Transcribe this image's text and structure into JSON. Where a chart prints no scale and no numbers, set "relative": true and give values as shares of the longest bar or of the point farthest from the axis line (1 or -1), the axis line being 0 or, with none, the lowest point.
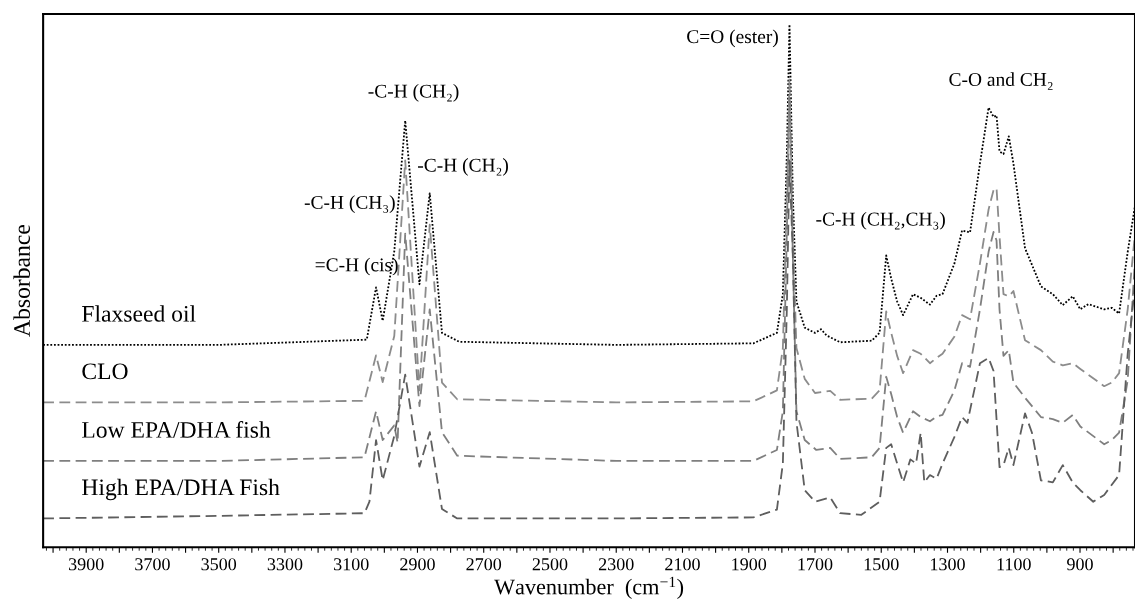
{
  "chart_data": {
    "type": "line",
    "relative": true,
    "xlabel": "Wavenumber  (cm$^{−1}$)",
    "ylabel": "Absorbance",
    "legend": false,
    "grid": false,
    "tick_labels": "x",
    "xlim": [
      4030,
      734
    ],
    "xticks": [
      {
        "value": 4000,
        "label": null
      },
      3900,
      {
        "value": 3800,
        "label": null
      },
      3700,
      {
        "value": 3600,
        "label": null
      },
      3500,
      {
        "value": 3400,
        "label": null
      },
      3300,
      {
        "value": 3200,
        "label": null
      },
      3100,
      {
        "value": 3000,
        "label": null
      },
      2900,
      {
        "value": 2800,
        "label": null
      },
      2700,
      {
        "value": 2600,
        "label": null
      },
      2500,
      {
        "value": 2400,
        "label": null
      },
      2300,
      {
        "value": 2200,
        "label": null
      },
      2100,
      {
        "value": 2000,
        "label": null
      },
      1900,
      {
        "value": 1800,
        "label": null
      },
      1700,
      {
        "value": 1600,
        "label": null
      },
      1500,
      {
        "value": 1400,
        "label": null
      },
      1300,
      {
        "value": 1200,
        "label": null
      },
      1100,
      {
        "value": 1000,
        "label": null
      },
      900,
      {
        "value": 800,
        "label": null
      }
    ],
    "annotations": [
      {
        "text": "-C-H (CH₂)",
        "x": 2937,
        "y": 0.816
      },
      {
        "text": "-C-H (CH₂)",
        "x": 2863,
        "y": 0.677
      },
      {
        "text": "-C-H (CH₃)",
        "x": 2970,
        "y": 0.566
      },
      {
        "text": "=C-H (cis)",
        "x": 3025,
        "y": 0.497
      },
      {
        "text": "C=O (ester)",
        "x": 1777,
        "y": 1.0
      },
      {
        "text": "-C-H (CH₂,CH₃)",
        "x": 1485,
        "y": 0.558
      },
      {
        "text": "C-O and CH₂",
        "x": 1176,
        "y": 0.841
      }
    ],
    "series": [
      {
        "name": "Flaxseed oil",
        "color": "#000000",
        "line_style": "dotted",
        "x": [
          4030,
          3500,
          3053,
          3025,
          3005,
          2970,
          2937,
          2894,
          2863,
          2826,
          2774,
          2300,
          1886,
          1815,
          1797,
          1785,
          1777,
          1767,
          1756,
          1731,
          1700,
          1682,
          1665,
          1624,
          1529,
          1505,
          1485,
          1470,
          1452,
          1434,
          1404,
          1381,
          1353,
          1333,
          1315,
          1279,
          1256,
          1232,
          1202,
          1176,
          1161,
          1152,
          1143,
          1131,
          1115,
          1101,
          1066,
          1018,
          982,
          952,
          922,
          899,
          875,
          827,
          804,
          782,
          756,
          734
        ],
        "values": [
          0.387,
          0.387,
          0.397,
          0.497,
          0.433,
          0.566,
          0.816,
          0.503,
          0.677,
          0.41,
          0.393,
          0.387,
          0.39,
          0.41,
          0.484,
          0.75,
          1.0,
          0.676,
          0.47,
          0.42,
          0.41,
          0.417,
          0.405,
          0.392,
          0.395,
          0.41,
          0.558,
          0.514,
          0.47,
          0.444,
          0.484,
          0.477,
          0.464,
          0.481,
          0.484,
          0.543,
          0.606,
          0.602,
          0.734,
          0.841,
          0.823,
          0.826,
          0.757,
          0.752,
          0.786,
          0.734,
          0.572,
          0.499,
          0.484,
          0.463,
          0.48,
          0.455,
          0.465,
          0.455,
          0.458,
          0.447,
          0.565,
          0.653
        ]
      },
      {
        "name": "CLO",
        "color": "#8c8c8c",
        "line_style": "dashed",
        "x": [
          4030,
          3500,
          3060,
          3025,
          3005,
          2970,
          2937,
          2894,
          2863,
          2826,
          2780,
          2300,
          1886,
          1815,
          1797,
          1785,
          1777,
          1767,
          1756,
          1731,
          1700,
          1654,
          1624,
          1529,
          1505,
          1485,
          1470,
          1452,
          1434,
          1404,
          1381,
          1353,
          1333,
          1315,
          1279,
          1256,
          1232,
          1202,
          1176,
          1161,
          1152,
          1143,
          1131,
          1115,
          1101,
          1066,
          1018,
          982,
          952,
          922,
          899,
          827,
          804,
          782,
          756,
          734
        ],
        "values": [
          0.277,
          0.277,
          0.28,
          0.367,
          0.316,
          0.404,
          0.74,
          0.3,
          0.617,
          0.315,
          0.283,
          0.277,
          0.279,
          0.3,
          0.381,
          0.676,
          0.896,
          0.602,
          0.381,
          0.322,
          0.295,
          0.299,
          0.282,
          0.284,
          0.3,
          0.451,
          0.41,
          0.366,
          0.333,
          0.377,
          0.37,
          0.352,
          0.362,
          0.37,
          0.403,
          0.444,
          0.436,
          0.543,
          0.646,
          0.683,
          0.687,
          0.595,
          0.484,
          0.48,
          0.49,
          0.396,
          0.377,
          0.355,
          0.348,
          0.352,
          0.341,
          0.308,
          0.315,
          0.333,
          0.455,
          0.6
        ]
      },
      {
        "name": "Low EPA/DHA fish",
        "color": "#7f7f7f",
        "line_style": "dashed",
        "x": [
          4030,
          3500,
          3060,
          3025,
          3005,
          2970,
          2960,
          2937,
          2894,
          2863,
          2826,
          2780,
          2300,
          1886,
          1815,
          1797,
          1785,
          1777,
          1767,
          1756,
          1731,
          1696,
          1654,
          1624,
          1529,
          1505,
          1485,
          1470,
          1452,
          1434,
          1404,
          1381,
          1353,
          1333,
          1315,
          1279,
          1256,
          1232,
          1202,
          1176,
          1161,
          1152,
          1143,
          1131,
          1115,
          1101,
          1066,
          1018,
          982,
          952,
          922,
          899,
          827,
          804,
          782,
          756,
          734
        ],
        "values": [
          0.165,
          0.165,
          0.172,
          0.26,
          0.205,
          0.233,
          0.2,
          0.6,
          0.27,
          0.455,
          0.22,
          0.175,
          0.165,
          0.165,
          0.186,
          0.26,
          0.602,
          0.86,
          0.56,
          0.26,
          0.205,
          0.186,
          0.19,
          0.169,
          0.172,
          0.19,
          0.326,
          0.293,
          0.249,
          0.219,
          0.26,
          0.249,
          0.241,
          0.25,
          0.253,
          0.3,
          0.352,
          0.345,
          0.455,
          0.565,
          0.603,
          0.587,
          0.455,
          0.366,
          0.377,
          0.315,
          0.286,
          0.249,
          0.245,
          0.238,
          0.253,
          0.231,
          0.197,
          0.205,
          0.219,
          0.32,
          0.55
        ]
      },
      {
        "name": "High EPA/DHA Fish",
        "color": "#5e5e5e",
        "line_style": "dashed",
        "x": [
          4030,
          3500,
          3060,
          3045,
          3025,
          3005,
          2970,
          2937,
          2894,
          2863,
          2826,
          2780,
          2300,
          1886,
          1815,
          1797,
          1785,
          1777,
          1767,
          1756,
          1731,
          1700,
          1654,
          1624,
          1560,
          1505,
          1485,
          1470,
          1452,
          1434,
          1412,
          1395,
          1381,
          1370,
          1353,
          1333,
          1315,
          1279,
          1256,
          1240,
          1202,
          1176,
          1161,
          1143,
          1131,
          1115,
          1101,
          1066,
          1045,
          1018,
          982,
          952,
          922,
          899,
          860,
          827,
          782,
          756,
          734
        ],
        "values": [
          0.055,
          0.06,
          0.065,
          0.087,
          0.205,
          0.128,
          0.213,
          0.33,
          0.154,
          0.22,
          0.073,
          0.055,
          0.055,
          0.057,
          0.072,
          0.16,
          0.455,
          0.74,
          0.56,
          0.24,
          0.109,
          0.087,
          0.095,
          0.065,
          0.062,
          0.087,
          0.19,
          0.197,
          0.16,
          0.124,
          0.168,
          0.16,
          0.219,
          0.124,
          0.138,
          0.131,
          0.16,
          0.211,
          0.249,
          0.238,
          0.352,
          0.362,
          0.337,
          0.153,
          0.157,
          0.19,
          0.157,
          0.256,
          0.219,
          0.128,
          0.124,
          0.157,
          0.124,
          0.109,
          0.087,
          0.1,
          0.138,
          0.37,
          0.5
        ]
      }
    ]
  }
}
